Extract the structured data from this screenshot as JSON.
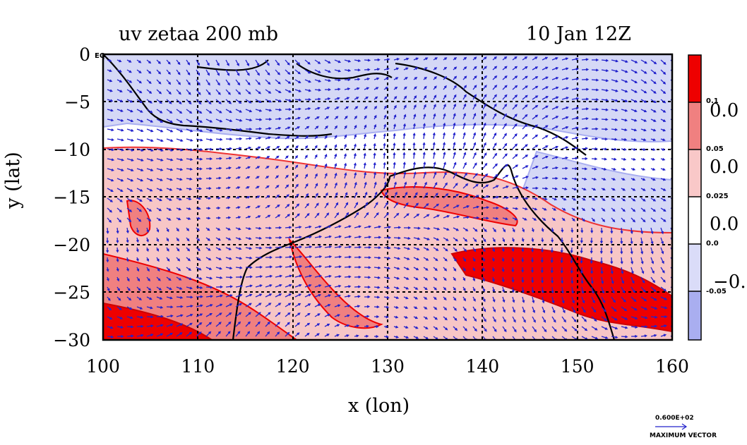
{
  "title": {
    "left": "uv zetaa 200 mb",
    "right": "10 Jan 12Z"
  },
  "axes": {
    "xlabel": "x (lon)",
    "ylabel": "y (lat)",
    "xticks": [
      "100",
      "110",
      "120",
      "130",
      "140",
      "150",
      "160"
    ],
    "yticks": [
      "0",
      "−5",
      "−10",
      "−15",
      "−20",
      "−25",
      "−30"
    ],
    "corner_label": "EQ",
    "xlim": [
      100,
      160
    ],
    "ylim": [
      -30,
      0
    ]
  },
  "colorbar": {
    "levels": [
      "0.1",
      "0.05",
      "0.025",
      "0.0",
      "-0.05"
    ],
    "overflow_labels": [
      "0.0",
      "0.0",
      "0.0",
      "−0."
    ],
    "colors": [
      "#ee0000",
      "#f08080",
      "#f9c8c8",
      "#ffffff",
      "#dadcf8",
      "#a9aef0"
    ]
  },
  "vector_legend": {
    "value": "0.600E+02",
    "label": "MAXIMUM VECTOR"
  },
  "colors": {
    "coast": "#000000",
    "vector": "#2222cc",
    "contour": "#ee0000"
  }
}
